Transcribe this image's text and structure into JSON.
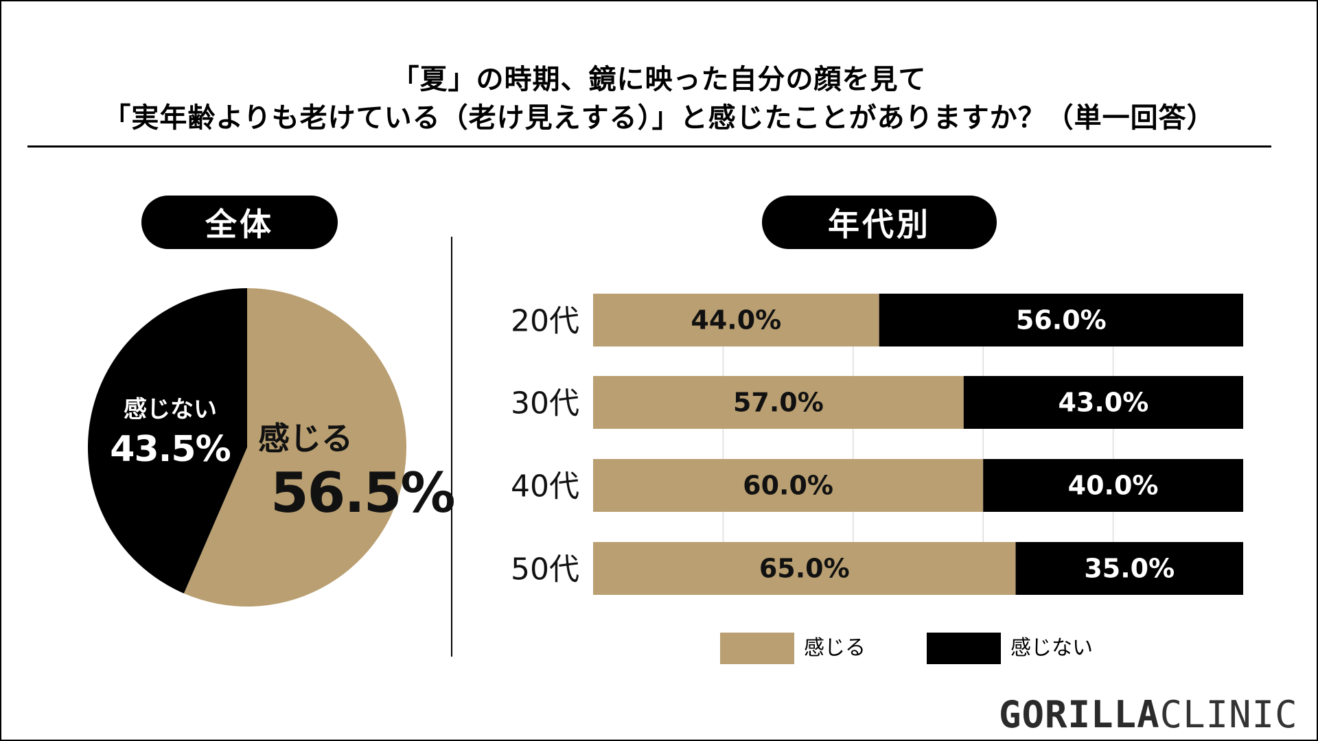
{
  "title": {
    "line1": "「夏」の時期、鏡に映った自分の顔を見て",
    "line2": "「実年齢よりも老けている（老け見えする）」と感じたことがありますか？（単一回答）"
  },
  "colors": {
    "feel": "#b99f71",
    "not_feel": "#000000",
    "grid": "#dddddd"
  },
  "brand": {
    "part1": "GORILLA",
    "part2": "CLINIC"
  },
  "chart_data": [
    {
      "type": "pie",
      "title": "全体",
      "slices": [
        {
          "label": "感じる",
          "value": 56.5,
          "display": "56.5%"
        },
        {
          "label": "感じない",
          "value": 43.5,
          "display": "43.5%"
        }
      ]
    },
    {
      "type": "bar",
      "orientation": "horizontal",
      "stacked": true,
      "title": "年代別",
      "categories": [
        "20代",
        "30代",
        "40代",
        "50代"
      ],
      "xlim": [
        0,
        100
      ],
      "grid": true,
      "legend_position": "bottom",
      "series": [
        {
          "name": "感じる",
          "values": [
            44.0,
            57.0,
            60.0,
            65.0
          ],
          "labels": [
            "44.0%",
            "57.0%",
            "60.0%",
            "65.0%"
          ]
        },
        {
          "name": "感じない",
          "values": [
            56.0,
            43.0,
            40.0,
            35.0
          ],
          "labels": [
            "56.0%",
            "43.0%",
            "40.0%",
            "35.0%"
          ]
        }
      ]
    }
  ]
}
